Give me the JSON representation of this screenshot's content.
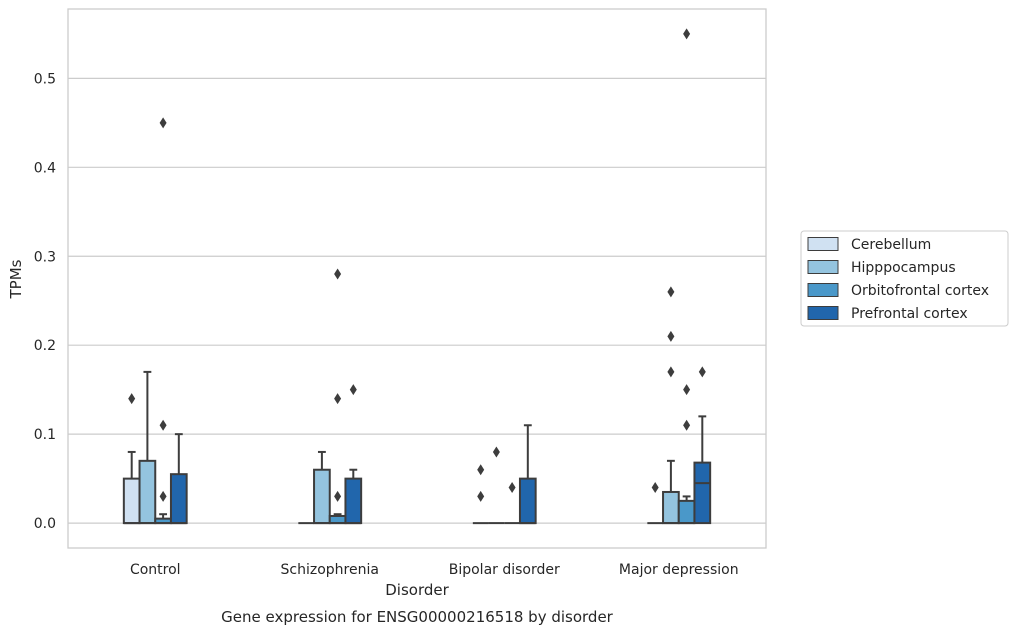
{
  "chart_data": {
    "type": "box",
    "xlabel": "Disorder",
    "ylabel": "TPMs",
    "caption": "Gene expression for ENSG00000216518 by disorder",
    "ylim": [
      -0.028,
      0.578
    ],
    "yticks": [
      0.0,
      0.1,
      0.2,
      0.3,
      0.4,
      0.5
    ],
    "ytick_labels": [
      "0.0",
      "0.1",
      "0.2",
      "0.3",
      "0.4",
      "0.5"
    ],
    "grid": "horizontal",
    "legend_position": "right",
    "categories": [
      "Control",
      "Schizophrenia",
      "Bipolar disorder",
      "Major depression"
    ],
    "series": [
      {
        "name": "Cerebellum",
        "color": "#d0e1f2",
        "boxes": [
          {
            "q1": 0.0,
            "median": 0.0,
            "q3": 0.05,
            "whislo": 0.0,
            "whishi": 0.08,
            "fliers": [
              0.14
            ]
          },
          {
            "q1": 0.0,
            "median": 0.0,
            "q3": 0.0,
            "whislo": 0.0,
            "whishi": 0.0,
            "fliers": []
          },
          {
            "q1": 0.0,
            "median": 0.0,
            "q3": 0.0,
            "whislo": 0.0,
            "whishi": 0.0,
            "fliers": [
              0.06,
              0.03
            ]
          },
          {
            "q1": 0.0,
            "median": 0.0,
            "q3": 0.0,
            "whislo": 0.0,
            "whishi": 0.0,
            "fliers": [
              0.04
            ]
          }
        ]
      },
      {
        "name": "Hipppocampus",
        "color": "#94c4df",
        "boxes": [
          {
            "q1": 0.0,
            "median": 0.0,
            "q3": 0.07,
            "whislo": 0.0,
            "whishi": 0.17,
            "fliers": []
          },
          {
            "q1": 0.0,
            "median": 0.0,
            "q3": 0.06,
            "whislo": 0.0,
            "whishi": 0.08,
            "fliers": []
          },
          {
            "q1": 0.0,
            "median": 0.0,
            "q3": 0.0,
            "whislo": 0.0,
            "whishi": 0.0,
            "fliers": [
              0.08
            ]
          },
          {
            "q1": 0.0,
            "median": 0.0,
            "q3": 0.035,
            "whislo": 0.0,
            "whishi": 0.07,
            "fliers": [
              0.26,
              0.21,
              0.17
            ]
          }
        ]
      },
      {
        "name": "Orbitofrontal cortex",
        "color": "#4a98c9",
        "boxes": [
          {
            "q1": 0.0,
            "median": 0.0,
            "q3": 0.005,
            "whislo": 0.0,
            "whishi": 0.01,
            "fliers": [
              0.45,
              0.11,
              0.03
            ]
          },
          {
            "q1": 0.0,
            "median": 0.0,
            "q3": 0.008,
            "whislo": 0.0,
            "whishi": 0.01,
            "fliers": [
              0.28,
              0.14,
              0.03
            ]
          },
          {
            "q1": 0.0,
            "median": 0.0,
            "q3": 0.0,
            "whislo": 0.0,
            "whishi": 0.0,
            "fliers": [
              0.04
            ]
          },
          {
            "q1": 0.0,
            "median": 0.0,
            "q3": 0.025,
            "whislo": 0.0,
            "whishi": 0.03,
            "fliers": [
              0.55,
              0.15,
              0.11
            ]
          }
        ]
      },
      {
        "name": "Prefrontal cortex",
        "color": "#2166ac",
        "boxes": [
          {
            "q1": 0.0,
            "median": 0.0,
            "q3": 0.055,
            "whislo": 0.0,
            "whishi": 0.1,
            "fliers": []
          },
          {
            "q1": 0.0,
            "median": 0.0,
            "q3": 0.05,
            "whislo": 0.0,
            "whishi": 0.06,
            "fliers": [
              0.15
            ]
          },
          {
            "q1": 0.0,
            "median": 0.0,
            "q3": 0.05,
            "whislo": 0.0,
            "whishi": 0.11,
            "fliers": []
          },
          {
            "q1": 0.0,
            "median": 0.045,
            "q3": 0.068,
            "whislo": 0.0,
            "whishi": 0.12,
            "fliers": [
              0.17
            ]
          }
        ]
      }
    ]
  }
}
